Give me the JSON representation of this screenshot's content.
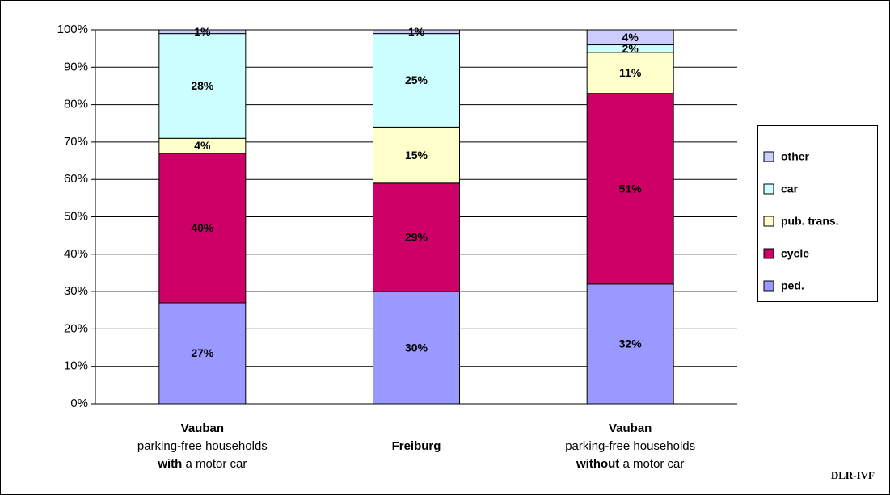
{
  "chart_data": {
    "type": "stacked_bar",
    "categories": [
      [
        [
          {
            "text": "Vauban",
            "bold": true
          }
        ],
        [
          {
            "text": "parking-free households",
            "bold": false
          }
        ],
        [
          {
            "text": "with",
            "bold": true
          },
          {
            "text": " a motor car",
            "bold": false
          }
        ]
      ],
      [
        [
          {
            "text": "Freiburg",
            "bold": true
          }
        ]
      ],
      [
        [
          {
            "text": "Vauban",
            "bold": true
          }
        ],
        [
          {
            "text": "parking-free households",
            "bold": false
          }
        ],
        [
          {
            "text": "without",
            "bold": true
          },
          {
            "text": " a motor car",
            "bold": false
          }
        ]
      ]
    ],
    "series": [
      {
        "name": "ped.",
        "color": "#9999ff",
        "values": [
          27,
          30,
          32
        ],
        "value_labels": [
          "27%",
          "30%",
          "32%"
        ]
      },
      {
        "name": "cycle",
        "color": "#cc0066",
        "values": [
          40,
          29,
          51
        ],
        "value_labels": [
          "40%",
          "29%",
          "51%"
        ]
      },
      {
        "name": "pub. trans.",
        "color": "#ffffcc",
        "values": [
          4,
          15,
          11
        ],
        "value_labels": [
          "4%",
          "15%",
          "11%"
        ]
      },
      {
        "name": "car",
        "color": "#ccffff",
        "values": [
          28,
          25,
          2
        ],
        "value_labels": [
          "28%",
          "25%",
          "2%"
        ]
      },
      {
        "name": "other",
        "color": "#ccccff",
        "values": [
          1,
          1,
          4
        ],
        "value_labels": [
          "1%",
          "1%",
          "4%"
        ]
      }
    ],
    "ylim": [
      0,
      100
    ],
    "yticks": [
      {
        "value": 0,
        "label": "0%"
      },
      {
        "value": 10,
        "label": "10%"
      },
      {
        "value": 20,
        "label": "20%"
      },
      {
        "value": 30,
        "label": "30%"
      },
      {
        "value": 40,
        "label": "40%"
      },
      {
        "value": 50,
        "label": "50%"
      },
      {
        "value": 60,
        "label": "60%"
      },
      {
        "value": 70,
        "label": "70%"
      },
      {
        "value": 80,
        "label": "80%"
      },
      {
        "value": 90,
        "label": "90%"
      },
      {
        "value": 100,
        "label": "100%"
      }
    ],
    "grid": true,
    "legend": "right",
    "annotation": "DLR-IVF"
  }
}
